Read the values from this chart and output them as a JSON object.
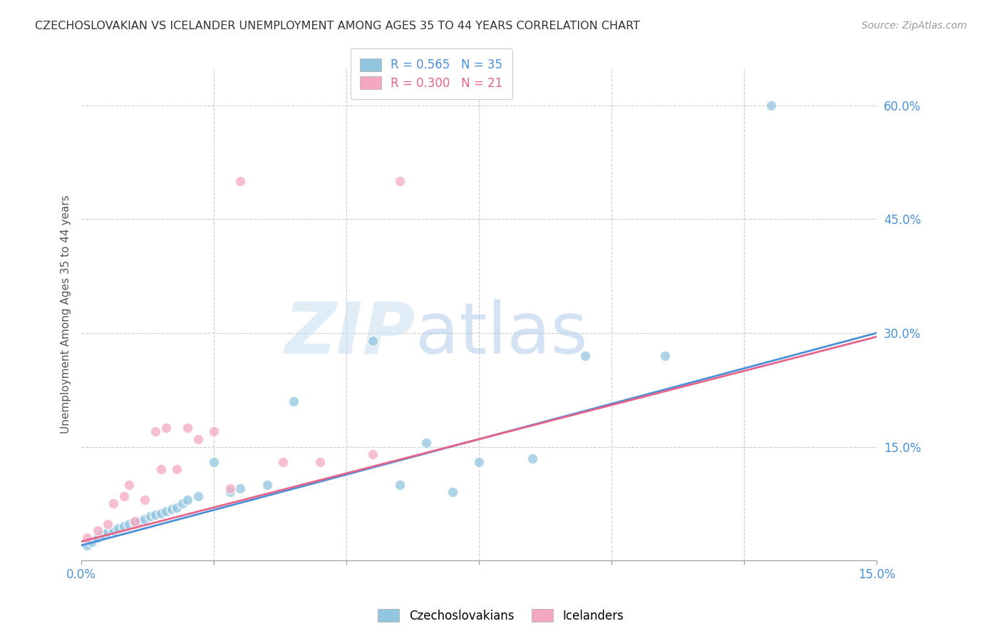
{
  "title": "CZECHOSLOVAKIAN VS ICELANDER UNEMPLOYMENT AMONG AGES 35 TO 44 YEARS CORRELATION CHART",
  "source": "Source: ZipAtlas.com",
  "ylabel": "Unemployment Among Ages 35 to 44 years",
  "xlim": [
    0.0,
    0.15
  ],
  "ylim": [
    0.0,
    0.65
  ],
  "background_color": "#ffffff",
  "blue_color": "#92c5de",
  "pink_color": "#f4a8c0",
  "blue_line_color": "#4a90d9",
  "pink_line_color": "#e8638a",
  "R_blue": 0.565,
  "N_blue": 35,
  "R_pink": 0.3,
  "N_pink": 21,
  "czecho_x": [
    0.001,
    0.002,
    0.003,
    0.004,
    0.005,
    0.006,
    0.007,
    0.008,
    0.009,
    0.01,
    0.011,
    0.012,
    0.013,
    0.014,
    0.015,
    0.016,
    0.017,
    0.018,
    0.019,
    0.02,
    0.022,
    0.025,
    0.028,
    0.03,
    0.035,
    0.04,
    0.055,
    0.06,
    0.065,
    0.07,
    0.075,
    0.085,
    0.095,
    0.11,
    0.13
  ],
  "czecho_y": [
    0.02,
    0.025,
    0.03,
    0.035,
    0.038,
    0.04,
    0.042,
    0.045,
    0.048,
    0.05,
    0.052,
    0.055,
    0.058,
    0.06,
    0.062,
    0.065,
    0.068,
    0.07,
    0.075,
    0.08,
    0.085,
    0.13,
    0.09,
    0.095,
    0.1,
    0.21,
    0.29,
    0.1,
    0.155,
    0.09,
    0.13,
    0.135,
    0.27,
    0.27,
    0.6
  ],
  "icelander_x": [
    0.001,
    0.003,
    0.005,
    0.006,
    0.008,
    0.009,
    0.01,
    0.012,
    0.014,
    0.015,
    0.016,
    0.018,
    0.02,
    0.022,
    0.025,
    0.028,
    0.03,
    0.038,
    0.045,
    0.055,
    0.06
  ],
  "icelander_y": [
    0.03,
    0.04,
    0.048,
    0.075,
    0.085,
    0.1,
    0.052,
    0.08,
    0.17,
    0.12,
    0.175,
    0.12,
    0.175,
    0.16,
    0.17,
    0.095,
    0.5,
    0.13,
    0.13,
    0.14,
    0.5
  ],
  "blue_line_x0": 0.0,
  "blue_line_y0": 0.02,
  "blue_line_x1": 0.15,
  "blue_line_y1": 0.3,
  "pink_line_x0": 0.0,
  "pink_line_y0": 0.025,
  "pink_line_x1": 0.15,
  "pink_line_y1": 0.295
}
